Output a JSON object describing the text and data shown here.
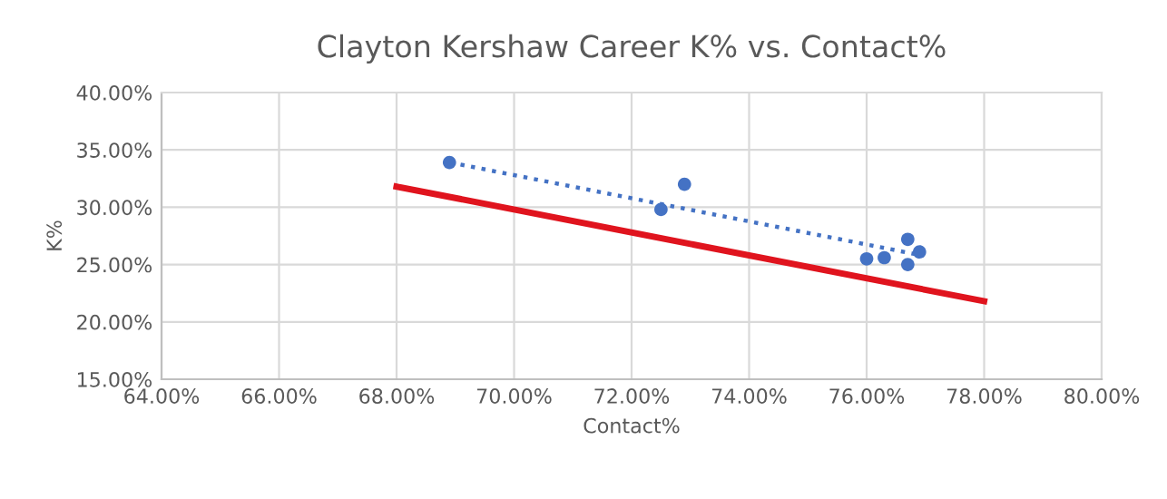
{
  "chart_data": {
    "type": "scatter",
    "title": "Clayton Kershaw Career K% vs. Contact%",
    "xlabel": "Contact%",
    "ylabel": "K%",
    "series": [
      {
        "color": "#4472c4",
        "marker": "circle",
        "x": [
          68.9,
          72.9,
          72.5,
          76.0,
          76.3,
          76.7,
          76.7,
          76.9
        ],
        "values": [
          33.9,
          32.0,
          29.8,
          25.5,
          25.6,
          27.2,
          25.0,
          26.1
        ]
      },
      {
        "type": "line",
        "color": "#4472c4",
        "line_style": "dotted",
        "x": [
          68.91,
          76.94
        ],
        "values": [
          33.9,
          25.8
        ]
      },
      {
        "type": "line",
        "color": "#e0141e",
        "line_style": "solid",
        "x": [
          68.0,
          78.0
        ],
        "values": [
          31.8,
          21.8
        ]
      }
    ],
    "xlim": [
      64,
      80
    ],
    "ylim": [
      15,
      40
    ],
    "xticks": [
      {
        "value": 64,
        "label": "64.00%"
      },
      {
        "value": 66,
        "label": "66.00%"
      },
      {
        "value": 68,
        "label": "68.00%"
      },
      {
        "value": 70,
        "label": "70.00%"
      },
      {
        "value": 72,
        "label": "72.00%"
      },
      {
        "value": 74,
        "label": "74.00%"
      },
      {
        "value": 76,
        "label": "76.00%"
      },
      {
        "value": 78,
        "label": "78.00%"
      },
      {
        "value": 80,
        "label": "80.00%"
      }
    ],
    "yticks": [
      {
        "value": 15,
        "label": "15.00%"
      },
      {
        "value": 20,
        "label": "20.00%"
      },
      {
        "value": 25,
        "label": "25.00%"
      },
      {
        "value": 30,
        "label": "30.00%"
      },
      {
        "value": 35,
        "label": "35.00%"
      },
      {
        "value": 40,
        "label": "40.00%"
      }
    ],
    "grid": true,
    "legend": false
  }
}
